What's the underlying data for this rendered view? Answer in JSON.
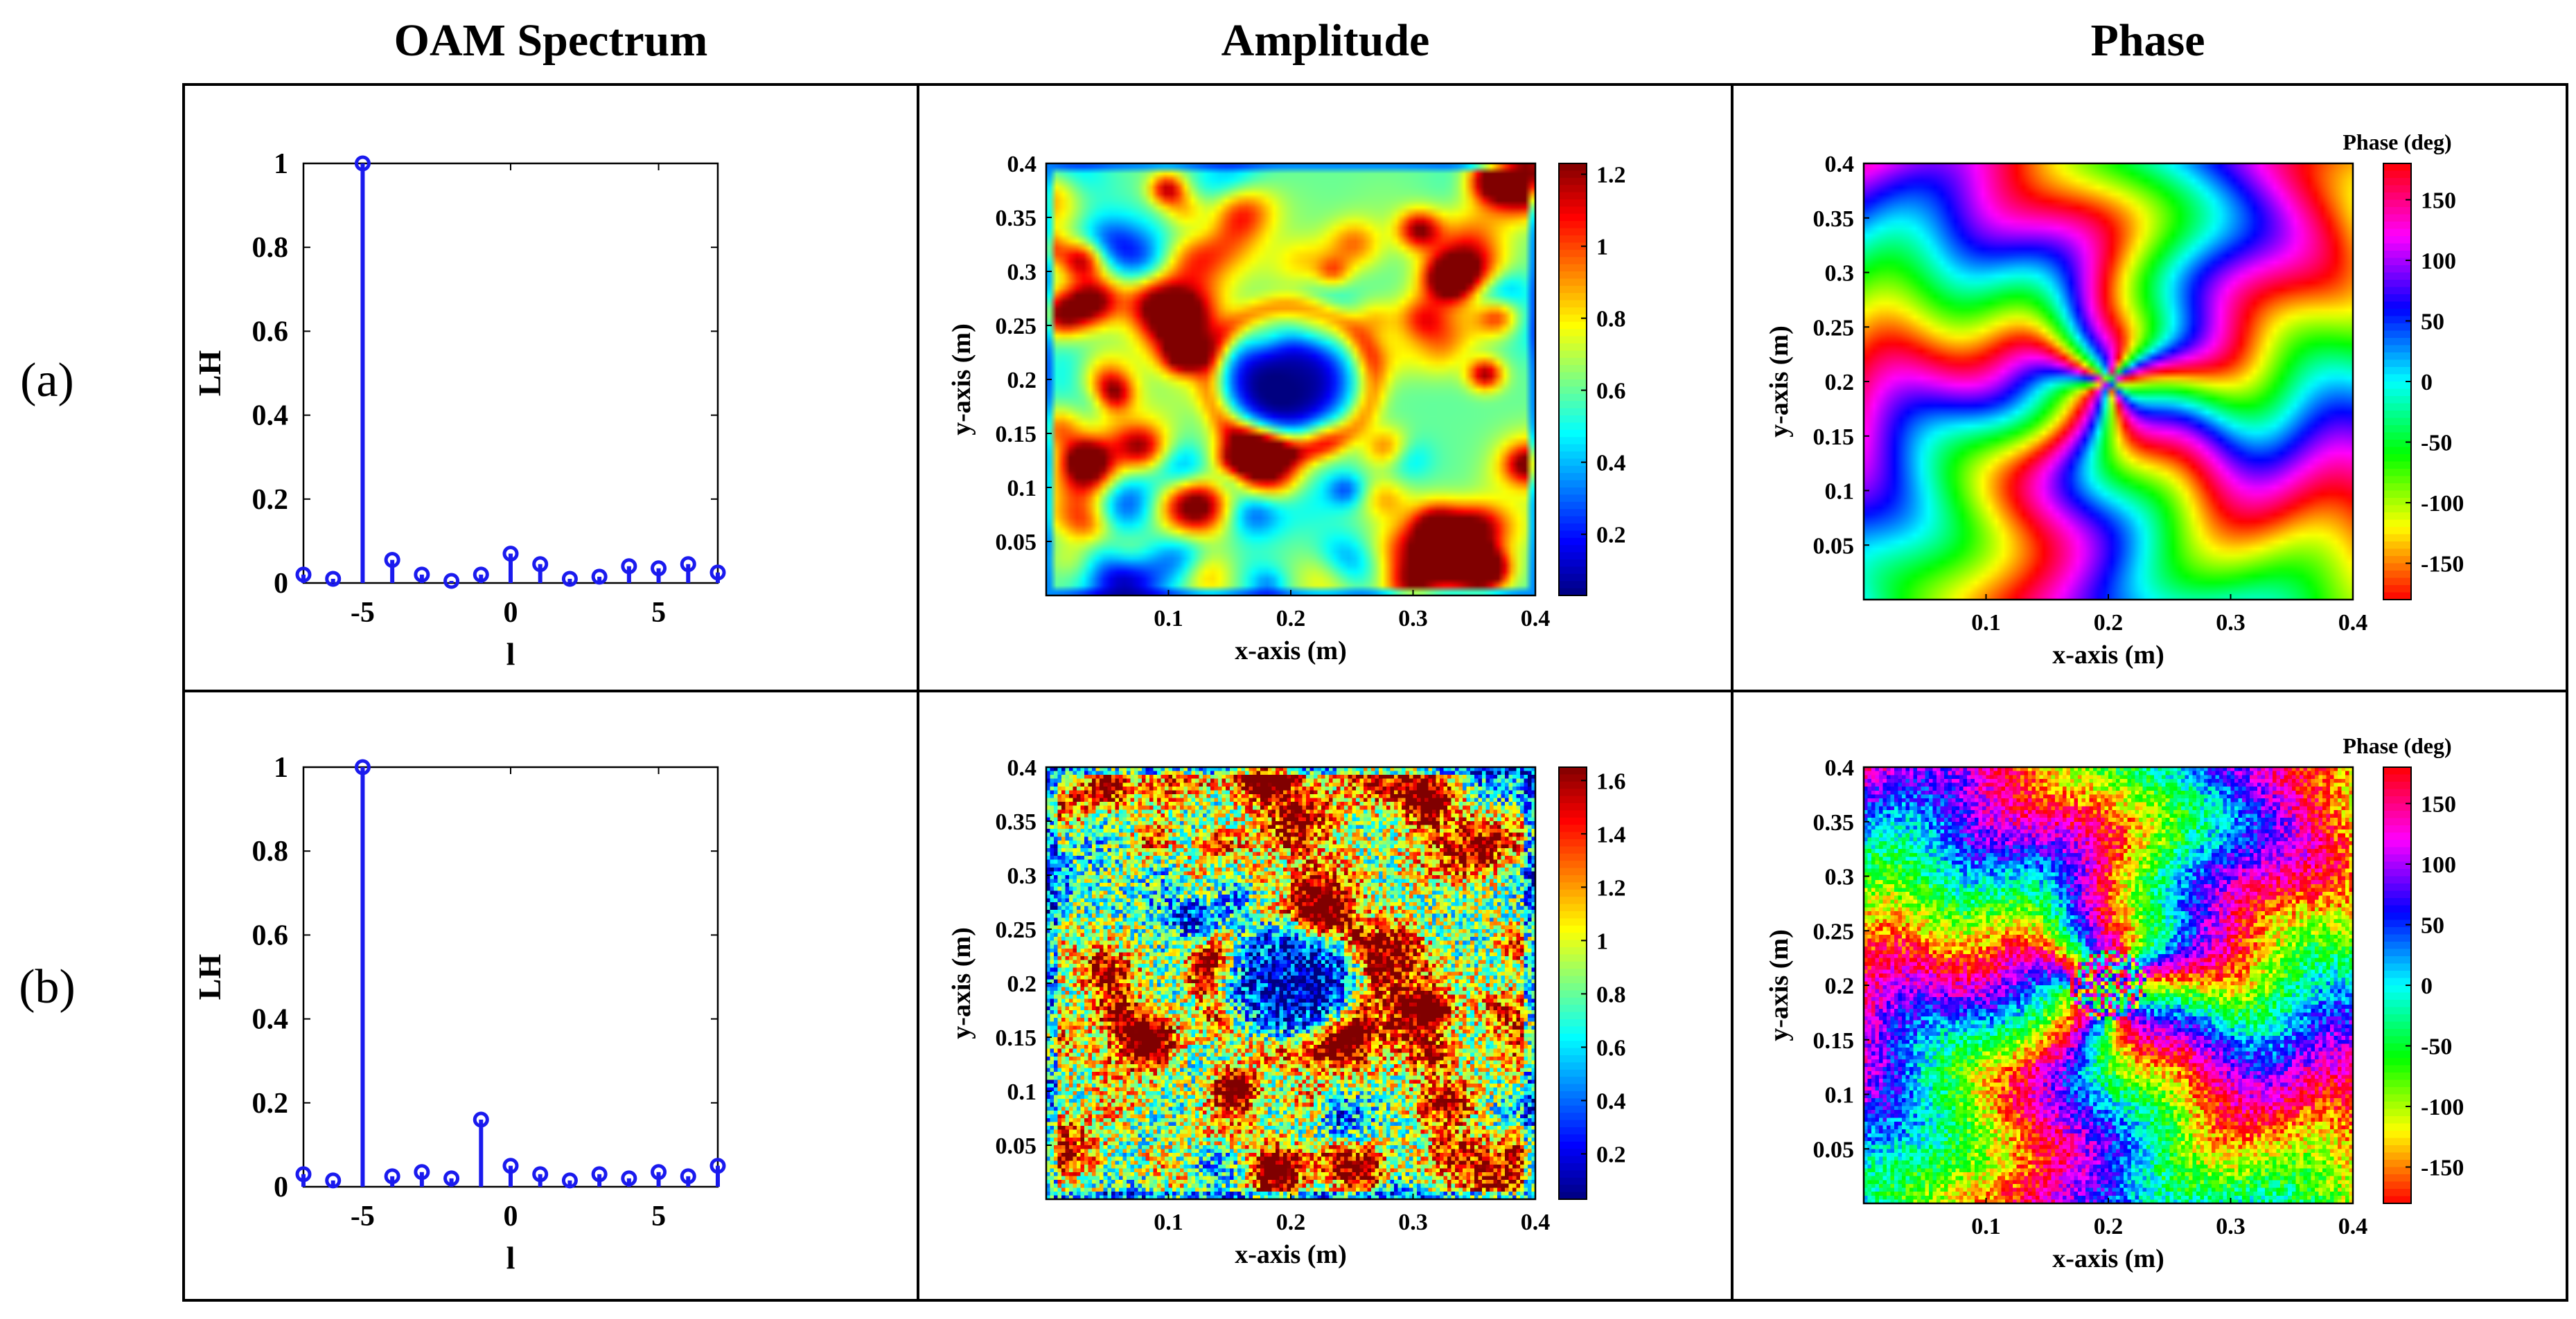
{
  "figure": {
    "column_headers": [
      "OAM Spectrum",
      "Amplitude",
      "Phase"
    ],
    "row_labels": [
      "(a)",
      "(b)"
    ]
  },
  "colors": {
    "stem": "#1a1aee",
    "grid_border": "#000000",
    "jet": [
      "#00008f",
      "#0000ff",
      "#00ffff",
      "#ffff00",
      "#ff0000",
      "#800000"
    ],
    "hsv_phase": [
      "#ff0000",
      "#ffff00",
      "#00ff00",
      "#00ffff",
      "#0000ff",
      "#ff00ff",
      "#ff0000"
    ]
  },
  "chart_data": [
    {
      "id": "a-spectrum",
      "type": "stem",
      "xlabel": "l",
      "ylabel": "LH",
      "xlim": [
        -7,
        7
      ],
      "ylim": [
        0,
        1
      ],
      "xticks": [
        -5,
        0,
        5
      ],
      "yticks": [
        0,
        0.2,
        0.4,
        0.6,
        0.8,
        1
      ],
      "ytick_labels": [
        "0",
        "0.2",
        "0.4",
        "0.6",
        "0.8",
        "1"
      ],
      "x": [
        -7,
        -6,
        -5,
        -4,
        -3,
        -2,
        -1,
        0,
        1,
        2,
        3,
        4,
        5,
        6,
        7
      ],
      "values": [
        0.02,
        0.01,
        1.0,
        0.055,
        0.02,
        0.005,
        0.02,
        0.07,
        0.045,
        0.01,
        0.015,
        0.04,
        0.035,
        0.045,
        0.025
      ]
    },
    {
      "id": "a-amplitude",
      "type": "heatmap",
      "colormap": "jet",
      "xlabel": "x-axis (m)",
      "ylabel": "y-axis (m)",
      "xticks": [
        "0.1",
        "0.2",
        "0.3",
        "0.4"
      ],
      "yticks": [
        "0.05",
        "0.1",
        "0.15",
        "0.2",
        "0.25",
        "0.3",
        "0.35",
        "0.4"
      ],
      "colorbar_ticks": [
        "0.2",
        "0.4",
        "0.6",
        "0.8",
        "1",
        "1.2"
      ],
      "crange": [
        0.03,
        1.23
      ],
      "noise": 0
    },
    {
      "id": "a-phase",
      "type": "heatmap",
      "colormap": "hsv",
      "colorbar_title": "Phase (deg)",
      "xlabel": "x-axis (m)",
      "ylabel": "y-axis (m)",
      "xticks": [
        "0.1",
        "0.2",
        "0.3",
        "0.4"
      ],
      "yticks": [
        "0.05",
        "0.1",
        "0.15",
        "0.2",
        "0.25",
        "0.3",
        "0.35",
        "0.4"
      ],
      "colorbar_ticks": [
        "150",
        "100",
        "50",
        "0",
        "-50",
        "-100",
        "-150"
      ],
      "crange": [
        -180,
        180
      ],
      "topological_charge": -5,
      "noise": 0
    },
    {
      "id": "b-spectrum",
      "type": "stem",
      "xlabel": "l",
      "ylabel": "LH",
      "xlim": [
        -7,
        7
      ],
      "ylim": [
        0,
        1
      ],
      "xticks": [
        -5,
        0,
        5
      ],
      "yticks": [
        0,
        0.2,
        0.4,
        0.6,
        0.8,
        1
      ],
      "ytick_labels": [
        "0",
        "0.2",
        "0.4",
        "0.6",
        "0.8",
        "1"
      ],
      "x": [
        -7,
        -6,
        -5,
        -4,
        -3,
        -2,
        -1,
        0,
        1,
        2,
        3,
        4,
        5,
        6,
        7
      ],
      "values": [
        0.03,
        0.015,
        1.0,
        0.025,
        0.035,
        0.02,
        0.16,
        0.05,
        0.03,
        0.015,
        0.03,
        0.02,
        0.035,
        0.025,
        0.05
      ]
    },
    {
      "id": "b-amplitude",
      "type": "heatmap",
      "colormap": "jet",
      "xlabel": "x-axis (m)",
      "ylabel": "y-axis (m)",
      "xticks": [
        "0.1",
        "0.2",
        "0.3",
        "0.4"
      ],
      "yticks": [
        "0.05",
        "0.1",
        "0.15",
        "0.2",
        "0.25",
        "0.3",
        "0.35",
        "0.4"
      ],
      "colorbar_ticks": [
        "0.2",
        "0.4",
        "0.6",
        "0.8",
        "1",
        "1.2",
        "1.4",
        "1.6"
      ],
      "crange": [
        0.03,
        1.65
      ],
      "noise": 1
    },
    {
      "id": "b-phase",
      "type": "heatmap",
      "colormap": "hsv",
      "colorbar_title": "Phase (deg)",
      "xlabel": "x-axis (m)",
      "ylabel": "y-axis (m)",
      "xticks": [
        "0.1",
        "0.2",
        "0.3",
        "0.4"
      ],
      "yticks": [
        "0.05",
        "0.1",
        "0.15",
        "0.2",
        "0.25",
        "0.3",
        "0.35",
        "0.4"
      ],
      "colorbar_ticks": [
        "150",
        "100",
        "50",
        "0",
        "-50",
        "-100",
        "-150"
      ],
      "crange": [
        -180,
        180
      ],
      "topological_charge": -5,
      "noise": 1
    }
  ]
}
